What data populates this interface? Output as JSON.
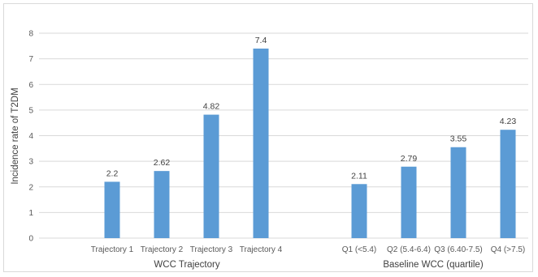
{
  "chart_data": {
    "type": "bar",
    "title": "",
    "ylabel": "Incidence rate of T2DM",
    "ylim": [
      0,
      8
    ],
    "yticks": [
      0,
      1,
      2,
      3,
      4,
      5,
      6,
      7,
      8
    ],
    "grid": true,
    "bar_color": "#5b9bd5",
    "groups": [
      {
        "label": "WCC Trajectory",
        "categories": [
          "Trajectory 1",
          "Trajectory 2",
          "Trajectory 3",
          "Trajectory 4"
        ],
        "values": [
          2.2,
          2.62,
          4.82,
          7.4
        ],
        "value_labels": [
          "2.2",
          "2.62",
          "4.82",
          "7.4"
        ]
      },
      {
        "label": "Baseline WCC (quartile)",
        "categories": [
          "Q1 (<5.4)",
          "Q2 (5.4-6.4)",
          "Q3 (6.40-7.5)",
          "Q4 (>7.5)"
        ],
        "values": [
          2.11,
          2.79,
          3.55,
          4.23
        ],
        "value_labels": [
          "2.11",
          "2.79",
          "3.55",
          "4.23"
        ]
      }
    ]
  }
}
